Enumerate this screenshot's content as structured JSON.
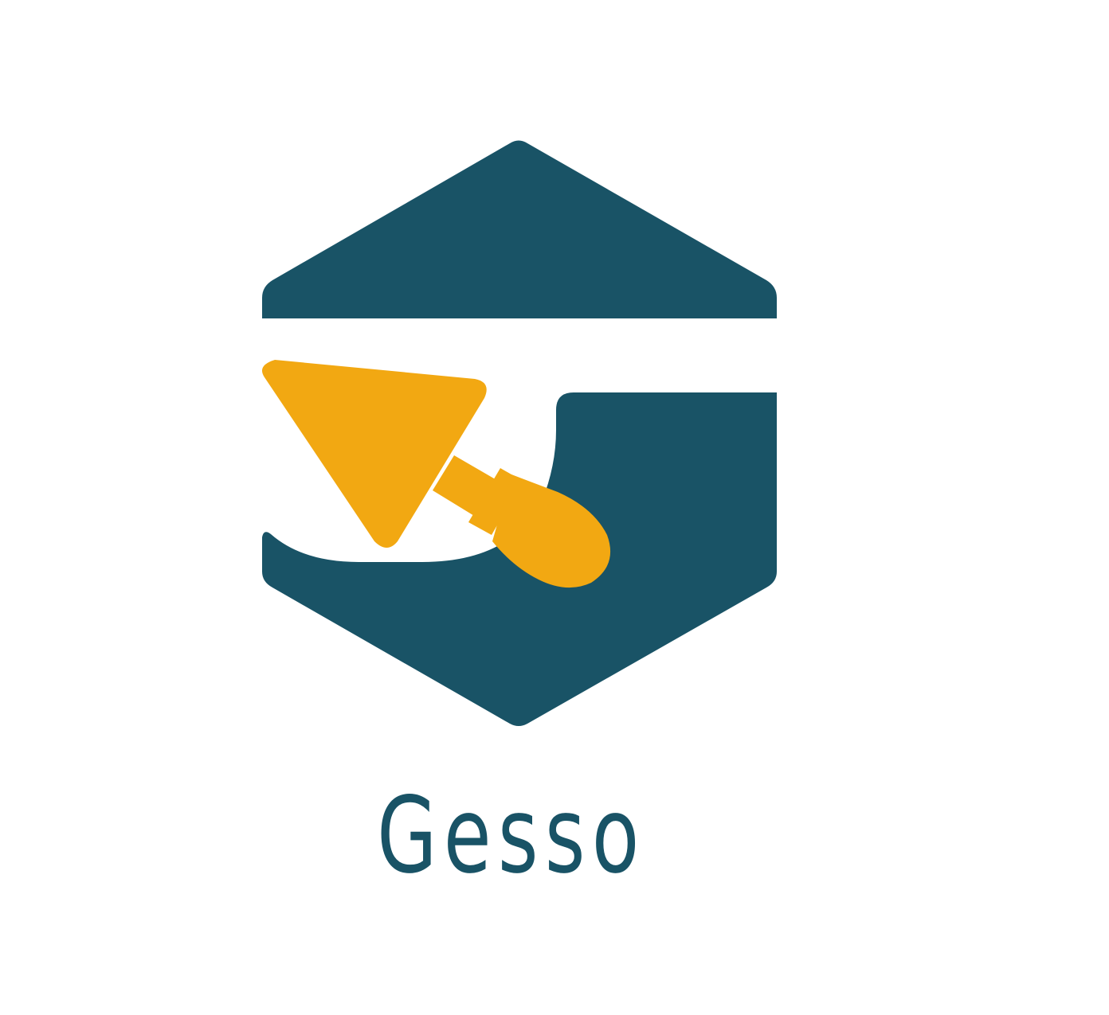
{
  "brand": {
    "name": "Gesso"
  },
  "colors": {
    "primary": "#195366",
    "accent": "#F2A812",
    "background": "#FFFFFF"
  },
  "icons": {
    "emblem": "hexagon-house-icon",
    "tool": "trowel-icon"
  }
}
